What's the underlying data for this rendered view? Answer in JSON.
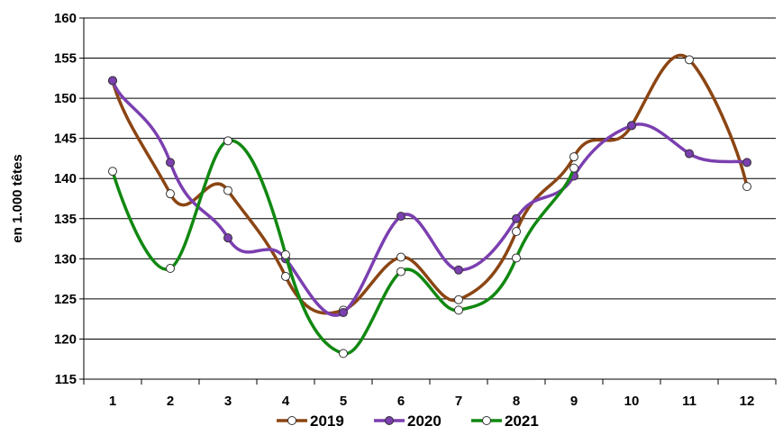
{
  "chart_data": {
    "type": "line",
    "x": [
      1,
      2,
      3,
      4,
      5,
      6,
      7,
      8,
      9,
      10,
      11,
      12
    ],
    "ylabel": "en 1.000 têtes",
    "xlabel": "",
    "ylim": [
      115,
      160
    ],
    "yticks": [
      115,
      120,
      125,
      130,
      135,
      140,
      145,
      150,
      155,
      160
    ],
    "grid": "horizontal",
    "legend_position": "bottom",
    "smooth": true,
    "series": [
      {
        "name": "2019",
        "color": "#8B4513",
        "marker_fill": "#ffffff",
        "values": [
          152.2,
          138.1,
          138.5,
          127.8,
          123.6,
          130.2,
          124.9,
          133.4,
          142.7,
          146.6,
          154.8,
          139.0
        ]
      },
      {
        "name": "2020",
        "color": "#7B3FB0",
        "marker_fill": "#7B3FB0",
        "values": [
          152.2,
          142.0,
          132.6,
          130.0,
          123.3,
          135.3,
          128.6,
          135.0,
          140.3,
          146.6,
          143.1,
          142.0
        ]
      },
      {
        "name": "2021",
        "color": "#118811",
        "marker_fill": "#ffffff",
        "values": [
          140.9,
          128.8,
          144.7,
          130.5,
          118.2,
          128.4,
          123.6,
          130.1,
          141.3,
          null,
          null,
          null
        ]
      }
    ]
  }
}
